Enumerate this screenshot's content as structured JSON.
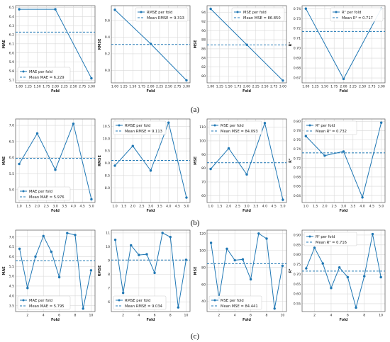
{
  "colors": {
    "line": "#1f77b4",
    "mean": "#1f77b4",
    "grid": "#d9d9d9",
    "frame": "#555555"
  },
  "panel_labels": [
    "(a)",
    "(b)",
    "(c)"
  ],
  "chart_data": [
    {
      "type": "line",
      "row": 0,
      "x": [
        1,
        2,
        3
      ],
      "values": [
        6.48,
        6.48,
        5.72
      ],
      "mean": 6.229,
      "ylim": [
        5.67,
        6.52
      ],
      "xlim": [
        0.9,
        3.1
      ],
      "xticks": [
        "1.00",
        "1.25",
        "1.50",
        "1.75",
        "2.00",
        "2.25",
        "2.50",
        "2.75",
        "3.00"
      ],
      "yticks": [
        "5.7",
        "5.8",
        "5.9",
        "6.0",
        "6.1",
        "6.2",
        "6.3",
        "6.4",
        "6.5"
      ],
      "xlabel": "Fold",
      "ylabel": "MAE",
      "legend": [
        "MAE per fold",
        "Mean MAE = 6.229"
      ],
      "legend_pos": "bottom-left"
    },
    {
      "type": "line",
      "row": 0,
      "x": [
        1,
        2,
        3
      ],
      "values": [
        9.73,
        9.32,
        8.88
      ],
      "mean": 9.313,
      "ylim": [
        8.85,
        9.78
      ],
      "xlim": [
        0.9,
        3.1
      ],
      "xticks": [
        "1.00",
        "1.25",
        "1.50",
        "1.75",
        "2.00",
        "2.25",
        "2.50",
        "2.75",
        "3.00"
      ],
      "yticks": [
        "9.0",
        "9.2",
        "9.4",
        "9.6"
      ],
      "xlabel": "Fold",
      "ylabel": "RMSE",
      "legend": [
        "RMSE per fold",
        "Mean RMSE = 9.313"
      ],
      "legend_pos": "top-right"
    },
    {
      "type": "line",
      "row": 0,
      "x": [
        1,
        2,
        3
      ],
      "values": [
        94.8,
        86.9,
        79.0
      ],
      "mean": 86.85,
      "ylim": [
        78.5,
        95.5
      ],
      "xlim": [
        0.9,
        3.1
      ],
      "xticks": [
        "1.00",
        "1.25",
        "1.50",
        "1.75",
        "2.00",
        "2.25",
        "2.50",
        "2.75",
        "3.00"
      ],
      "yticks": [
        "80",
        "82",
        "84",
        "86",
        "88",
        "90",
        "92",
        "94"
      ],
      "xlabel": "Fold",
      "ylabel": "MSE",
      "legend": [
        "MSE per fold",
        "Mean MSE = 86.850"
      ],
      "legend_pos": "top-right"
    },
    {
      "type": "line",
      "row": 0,
      "x": [
        1,
        2,
        3
      ],
      "values": [
        0.74,
        0.669,
        0.74
      ],
      "mean": 0.717,
      "ylim": [
        0.665,
        0.743
      ],
      "xlim": [
        0.9,
        3.1
      ],
      "xticks": [
        "1.00",
        "1.25",
        "1.50",
        "1.75",
        "2.00",
        "2.25",
        "2.50",
        "2.75",
        "3.00"
      ],
      "yticks": [
        "0.67",
        "0.68",
        "0.69",
        "0.70",
        "0.71",
        "0.72",
        "0.73",
        "0.74"
      ],
      "xlabel": "Fold",
      "ylabel": "R²",
      "legend": [
        "R² per fold",
        "Mean R² = 0.717"
      ],
      "legend_pos": "top-right"
    },
    {
      "type": "line",
      "row": 1,
      "x": [
        1,
        2,
        3,
        4,
        5
      ],
      "values": [
        5.8,
        6.75,
        5.62,
        7.05,
        4.7
      ],
      "mean": 5.976,
      "ylim": [
        4.6,
        7.2
      ],
      "xlim": [
        0.8,
        5.2
      ],
      "xticks": [
        "1.0",
        "1.5",
        "2.0",
        "2.5",
        "3.0",
        "3.5",
        "4.0",
        "4.5",
        "5.0"
      ],
      "yticks": [
        "5.0",
        "5.5",
        "6.0",
        "6.5",
        "7.0"
      ],
      "xlabel": "Fold",
      "ylabel": "MAE",
      "legend": [
        "MAE per fold",
        "Mean MAE = 5.976"
      ],
      "legend_pos": "bottom-left"
    },
    {
      "type": "line",
      "row": 1,
      "x": [
        1,
        2,
        3,
        4,
        5
      ],
      "values": [
        8.9,
        9.7,
        8.7,
        10.65,
        7.6
      ],
      "mean": 9.113,
      "ylim": [
        7.4,
        10.8
      ],
      "xlim": [
        0.8,
        5.2
      ],
      "xticks": [
        "1.0",
        "1.5",
        "2.0",
        "2.5",
        "3.0",
        "3.5",
        "4.0",
        "4.5",
        "5.0"
      ],
      "yticks": [
        "8.0",
        "8.5",
        "9.0",
        "9.5",
        "10.0",
        "10.5"
      ],
      "xlabel": "Fold",
      "ylabel": "RMSE",
      "legend": [
        "RMSE per fold",
        "Mean RMSE = 9.113"
      ],
      "legend_pos": "top-left"
    },
    {
      "type": "line",
      "row": 1,
      "x": [
        1,
        2,
        3,
        4,
        5
      ],
      "values": [
        79.5,
        94.5,
        75.5,
        113.0,
        57.0
      ],
      "mean": 84.093,
      "ylim": [
        55,
        116
      ],
      "xlim": [
        0.8,
        5.2
      ],
      "xticks": [
        "1.0",
        "1.5",
        "2.0",
        "2.5",
        "3.0",
        "3.5",
        "4.0",
        "4.5",
        "5.0"
      ],
      "yticks": [
        "60",
        "70",
        "80",
        "90",
        "100",
        "110"
      ],
      "xlabel": "Fold",
      "ylabel": "MSE",
      "legend": [
        "MSE per fold",
        "Mean MSE = 84.093"
      ],
      "legend_pos": "top-left"
    },
    {
      "type": "line",
      "row": 1,
      "x": [
        1,
        2,
        3,
        4,
        5
      ],
      "values": [
        0.768,
        0.726,
        0.735,
        0.636,
        0.797
      ],
      "mean": 0.732,
      "ylim": [
        0.625,
        0.805
      ],
      "xlim": [
        0.8,
        5.2
      ],
      "xticks": [
        "1.0",
        "1.5",
        "2.0",
        "2.5",
        "3.0",
        "3.5",
        "4.0",
        "4.5",
        "5.0"
      ],
      "yticks": [
        "0.64",
        "0.66",
        "0.68",
        "0.70",
        "0.72",
        "0.74",
        "0.76",
        "0.78",
        "0.80"
      ],
      "xlabel": "Fold",
      "ylabel": "R²",
      "legend": [
        "R² per fold",
        "Mean R² = 0.732"
      ],
      "legend_pos": "top-left"
    },
    {
      "type": "line",
      "row": 2,
      "x": [
        1,
        2,
        3,
        4,
        5,
        6,
        7,
        8,
        9,
        10
      ],
      "values": [
        6.4,
        4.4,
        6.0,
        7.05,
        6.25,
        4.95,
        7.2,
        7.1,
        3.35,
        5.3
      ],
      "mean": 5.795,
      "ylim": [
        3.2,
        7.35
      ],
      "xlim": [
        0.5,
        10.5
      ],
      "xticks": [
        "2",
        "4",
        "6",
        "8",
        "10"
      ],
      "xtick_values": [
        2,
        4,
        6,
        8,
        10
      ],
      "yticks": [
        "3.5",
        "4.0",
        "4.5",
        "5.0",
        "5.5",
        "6.0",
        "6.5",
        "7.0"
      ],
      "xlabel": "Fold",
      "ylabel": "MAE",
      "legend": [
        "MAE per fold",
        "Mean MAE = 5.795"
      ],
      "legend_pos": "bottom-left"
    },
    {
      "type": "line",
      "row": 2,
      "x": [
        1,
        2,
        3,
        4,
        5,
        6,
        7,
        8,
        9,
        10
      ],
      "values": [
        10.5,
        6.65,
        10.1,
        9.4,
        9.45,
        8.1,
        11.0,
        10.7,
        5.6,
        9.05
      ],
      "mean": 9.034,
      "ylim": [
        5.3,
        11.2
      ],
      "xlim": [
        0.5,
        10.5
      ],
      "xticks": [
        "2",
        "4",
        "6",
        "8",
        "10"
      ],
      "xtick_values": [
        2,
        4,
        6,
        8,
        10
      ],
      "yticks": [
        "6",
        "7",
        "8",
        "9",
        "10",
        "11"
      ],
      "xlabel": "Fold",
      "ylabel": "RMSE",
      "legend": [
        "RMSE per fold",
        "Mean RMSE = 9.034"
      ],
      "legend_pos": "bottom-left"
    },
    {
      "type": "line",
      "row": 2,
      "x": [
        1,
        2,
        3,
        4,
        5,
        6,
        7,
        8,
        9,
        10
      ],
      "values": [
        109,
        44,
        102,
        88.5,
        89.5,
        66,
        120,
        114,
        31.5,
        82
      ],
      "mean": 84.441,
      "ylim": [
        28,
        124
      ],
      "xlim": [
        0.5,
        10.5
      ],
      "xticks": [
        "2",
        "4",
        "6",
        "8",
        "10"
      ],
      "xtick_values": [
        2,
        4,
        6,
        8,
        10
      ],
      "yticks": [
        "40",
        "60",
        "80",
        "100",
        "120"
      ],
      "xlabel": "Fold",
      "ylabel": "MSE",
      "legend": [
        "MSE per fold",
        "Mean MSE = 84.441"
      ],
      "legend_pos": "bottom-left"
    },
    {
      "type": "line",
      "row": 2,
      "x": [
        1,
        2,
        3,
        4,
        5,
        6,
        7,
        8,
        9,
        10
      ],
      "values": [
        0.73,
        0.835,
        0.755,
        0.63,
        0.735,
        0.685,
        0.53,
        0.69,
        0.905,
        0.685
      ],
      "mean": 0.716,
      "ylim": [
        0.51,
        0.925
      ],
      "xlim": [
        0.5,
        10.5
      ],
      "xticks": [
        "2",
        "4",
        "6",
        "8",
        "10"
      ],
      "xtick_values": [
        2,
        4,
        6,
        8,
        10
      ],
      "yticks": [
        "0.55",
        "0.60",
        "0.65",
        "0.70",
        "0.75",
        "0.80",
        "0.85",
        "0.90"
      ],
      "xlabel": "Fold",
      "ylabel": "R²",
      "legend": [
        "R² per fold",
        "Mean R² = 0.716"
      ],
      "legend_pos": "top-left"
    }
  ]
}
